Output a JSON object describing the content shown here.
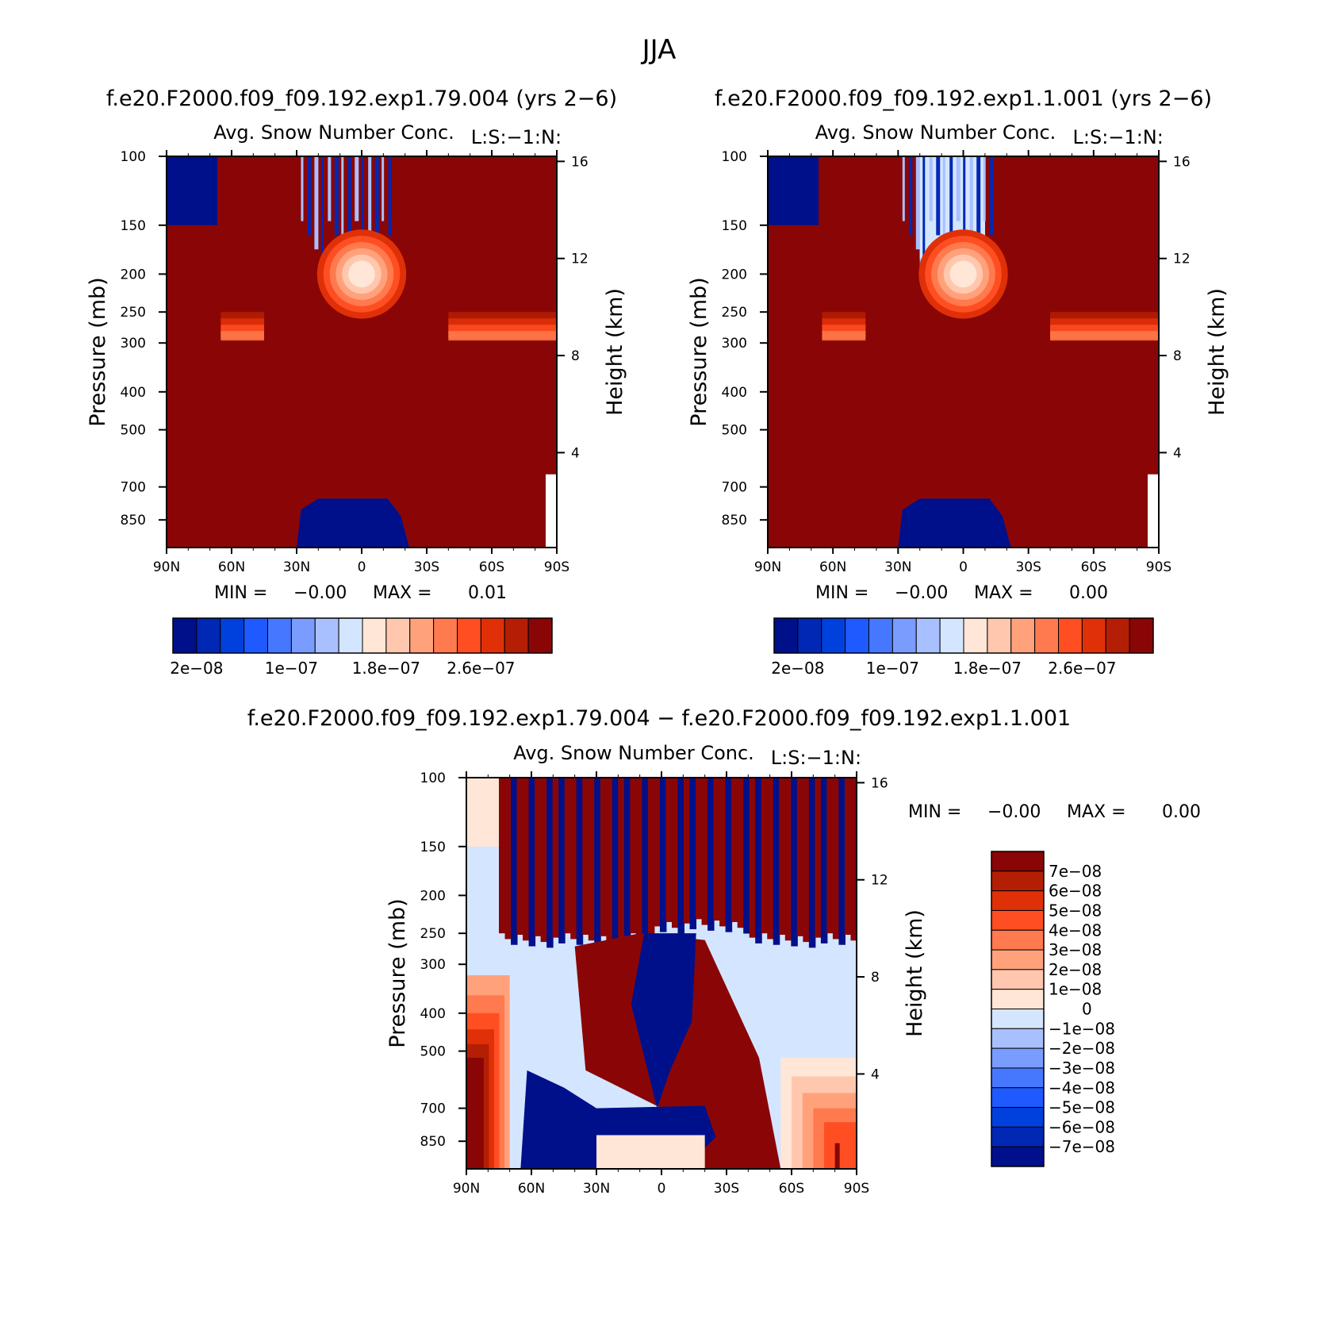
{
  "figure": {
    "season_title": "JJA"
  },
  "chart_data": [
    {
      "type": "heatmap",
      "run_title": "f.e20.F2000.f09_f09.192.exp1.79.004 (yrs 2−6)",
      "variable_title": "Avg. Snow Number Conc.",
      "variable_tag": "L:S:−1:N:",
      "xlabel": "",
      "ylabel": "Pressure (mb)",
      "ylabel_right": "Height (km)",
      "x_ticks": [
        "90N",
        "60N",
        "30N",
        "0",
        "30S",
        "60S",
        "90S"
      ],
      "x_values": [
        90,
        60,
        30,
        0,
        -30,
        -60,
        -90
      ],
      "y_ticks": [
        "100",
        "150",
        "200",
        "250",
        "300",
        "400",
        "500",
        "700",
        "850"
      ],
      "y_values": [
        100,
        150,
        200,
        250,
        300,
        400,
        500,
        700,
        850
      ],
      "ylim": [
        100,
        1000
      ],
      "y_scale": "log",
      "height_ticks": [
        "16",
        "12",
        "8",
        "4"
      ],
      "height_values": [
        16,
        12,
        8,
        4
      ],
      "stats": {
        "min_label": "MIN =",
        "min": "−0.00",
        "max_label": "MAX =",
        "max": "0.01"
      },
      "colorbar": {
        "orientation": "horizontal",
        "colors": [
          "#00108a",
          "#0028b4",
          "#0040dc",
          "#1e5aff",
          "#4678ff",
          "#7a9cff",
          "#a8c0ff",
          "#d4e6ff",
          "#ffe6d6",
          "#ffc8ae",
          "#ffa27c",
          "#ff7a4e",
          "#ff4e22",
          "#e03008",
          "#b41e04",
          "#8a0606"
        ],
        "tick_labels": [
          "2e−08",
          "1e−07",
          "1.8e−07",
          "2.6e−07"
        ],
        "tick_values": [
          2e-08,
          1e-07,
          1.8e-07,
          2.6e-07
        ]
      },
      "field_summary": "mostly max-level (dark red) values; near-zero (dark blue) below about 700 mb between 30N and 20S and above 150 mb near 90N; lighter red/orange contours around 200-300 mb"
    },
    {
      "type": "heatmap",
      "run_title": "f.e20.F2000.f09_f09.192.exp1.1.001 (yrs 2−6)",
      "variable_title": "Avg. Snow Number Conc.",
      "variable_tag": "L:S:−1:N:",
      "xlabel": "",
      "ylabel": "Pressure (mb)",
      "ylabel_right": "Height (km)",
      "x_ticks": [
        "90N",
        "60N",
        "30N",
        "0",
        "30S",
        "60S",
        "90S"
      ],
      "x_values": [
        90,
        60,
        30,
        0,
        -30,
        -60,
        -90
      ],
      "y_ticks": [
        "100",
        "150",
        "200",
        "250",
        "300",
        "400",
        "500",
        "700",
        "850"
      ],
      "y_values": [
        100,
        150,
        200,
        250,
        300,
        400,
        500,
        700,
        850
      ],
      "ylim": [
        100,
        1000
      ],
      "y_scale": "log",
      "height_ticks": [
        "16",
        "12",
        "8",
        "4"
      ],
      "height_values": [
        16,
        12,
        8,
        4
      ],
      "stats": {
        "min_label": "MIN =",
        "min": "−0.00",
        "max_label": "MAX =",
        "max": "0.00"
      },
      "colorbar": {
        "orientation": "horizontal",
        "colors": [
          "#00108a",
          "#0028b4",
          "#0040dc",
          "#1e5aff",
          "#4678ff",
          "#7a9cff",
          "#a8c0ff",
          "#d4e6ff",
          "#ffe6d6",
          "#ffc8ae",
          "#ffa27c",
          "#ff7a4e",
          "#ff4e22",
          "#e03008",
          "#b41e04",
          "#8a0606"
        ],
        "tick_labels": [
          "2e−08",
          "1e−07",
          "1.8e−07",
          "2.6e−07"
        ],
        "tick_values": [
          2e-08,
          1e-07,
          1.8e-07,
          2.6e-07
        ]
      },
      "field_summary": "mostly max-level (dark red); blue region above 200 mb from 20N to 10S; dark blue near surface between 30N and 20S"
    },
    {
      "type": "heatmap",
      "run_title": "f.e20.F2000.f09_f09.192.exp1.79.004 − f.e20.F2000.f09_f09.192.exp1.1.001",
      "variable_title": "Avg. Snow Number Conc.",
      "variable_tag": "L:S:−1:N:",
      "xlabel": "",
      "ylabel": "Pressure (mb)",
      "ylabel_right": "Height (km)",
      "x_ticks": [
        "90N",
        "60N",
        "30N",
        "0",
        "30S",
        "60S",
        "90S"
      ],
      "x_values": [
        90,
        60,
        30,
        0,
        -30,
        -60,
        -90
      ],
      "y_ticks": [
        "100",
        "150",
        "200",
        "250",
        "300",
        "400",
        "500",
        "700",
        "850"
      ],
      "y_values": [
        100,
        150,
        200,
        250,
        300,
        400,
        500,
        700,
        850
      ],
      "ylim": [
        100,
        1000
      ],
      "y_scale": "log",
      "height_ticks": [
        "16",
        "12",
        "8",
        "4"
      ],
      "height_values": [
        16,
        12,
        8,
        4
      ],
      "stats": {
        "min_label": "MIN =",
        "min": "−0.00",
        "max_label": "MAX =",
        "max": "0.00"
      },
      "colorbar": {
        "orientation": "vertical",
        "colors": [
          "#8a0606",
          "#b41e04",
          "#e03008",
          "#ff4e22",
          "#ff7a4e",
          "#ffa27c",
          "#ffc8ae",
          "#ffe6d6",
          "#d4e6ff",
          "#a8c0ff",
          "#7a9cff",
          "#4678ff",
          "#1e5aff",
          "#0040dc",
          "#0028b4",
          "#00108a"
        ],
        "tick_labels": [
          "7e−08",
          "6e−08",
          "5e−08",
          "4e−08",
          "3e−08",
          "2e−08",
          "1e−08",
          "0",
          "−1e−08",
          "−2e−08",
          "−3e−08",
          "−4e−08",
          "−5e−08",
          "−6e−08",
          "−7e−08"
        ],
        "tick_values": [
          7e-08,
          6e-08,
          5e-08,
          4e-08,
          3e-08,
          2e-08,
          1e-08,
          0,
          -1e-08,
          -2e-08,
          -3e-08,
          -4e-08,
          -5e-08,
          -6e-08,
          -7e-08
        ]
      },
      "field_summary": "positive (red) difference in upper levels and a diagonal band from 45N at 300 mb to 30S near surface; negative (blue) below 200 mb in tropics and scattered columns; light blue/near-zero around 300-600 mb in high latitudes"
    }
  ]
}
